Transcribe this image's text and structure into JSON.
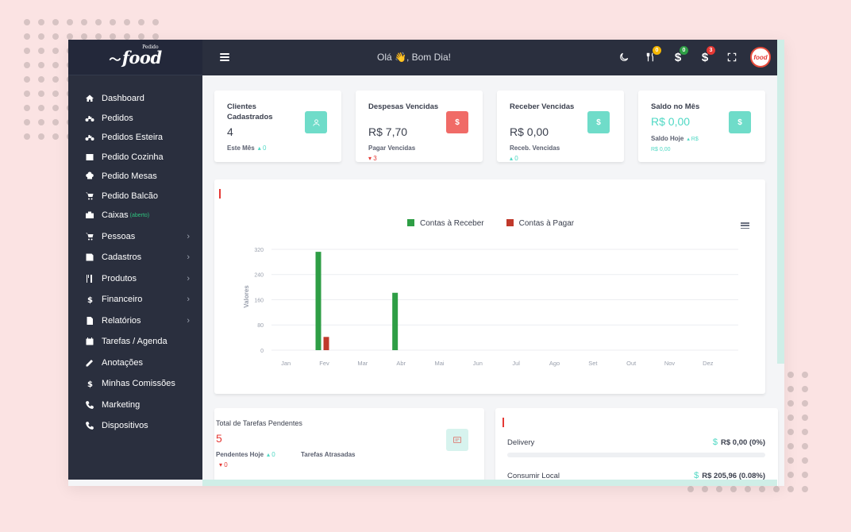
{
  "logo": {
    "text": "food",
    "superscript": "Pedido"
  },
  "header": {
    "greeting": "Olá 👋, Bom Dia!"
  },
  "topbar_badges": [
    {
      "icon": "moon-icon",
      "count": null
    },
    {
      "icon": "utensils-icon",
      "count": "0",
      "color": "#f5b700"
    },
    {
      "icon": "dollar-icon",
      "count": "0",
      "color": "#2e9e45"
    },
    {
      "icon": "dollar-icon",
      "count": "3",
      "color": "#e53935"
    },
    {
      "icon": "fullscreen-icon",
      "count": null
    }
  ],
  "avatar": {
    "text": "food"
  },
  "sidebar": {
    "items": [
      {
        "label": "Dashboard",
        "icon": "home-icon"
      },
      {
        "label": "Pedidos",
        "icon": "motorcycle-icon"
      },
      {
        "label": "Pedidos Esteira",
        "icon": "motorcycle-icon"
      },
      {
        "label": "Pedido Cozinha",
        "icon": "table-icon"
      },
      {
        "label": "Pedido Mesas",
        "icon": "chef-icon"
      },
      {
        "label": "Pedido Balcão",
        "icon": "cart-icon"
      },
      {
        "label": "Caixas",
        "sub": "(aberto)",
        "icon": "briefcase-icon"
      },
      {
        "label": "Pessoas",
        "icon": "cart-icon",
        "chevron": true
      },
      {
        "label": "Cadastros",
        "icon": "save-icon",
        "chevron": true
      },
      {
        "label": "Produtos",
        "icon": "utensils-icon",
        "chevron": true
      },
      {
        "label": "Financeiro",
        "icon": "dollar-icon",
        "chevron": true
      },
      {
        "label": "Relatórios",
        "icon": "file-icon",
        "chevron": true
      },
      {
        "label": "Tarefas / Agenda",
        "icon": "calendar-icon"
      },
      {
        "label": "Anotações",
        "icon": "edit-icon"
      },
      {
        "label": "Minhas Comissões",
        "icon": "dollar-icon"
      },
      {
        "label": "Marketing",
        "icon": "phone-icon"
      },
      {
        "label": "Dispositivos",
        "icon": "phone-icon"
      }
    ]
  },
  "stats": [
    {
      "title": "Clientes Cadastrados",
      "value": "4",
      "footer_label": "Este Mês",
      "footer_value": "0",
      "icon_text": "👤"
    },
    {
      "title": "Despesas Vencidas",
      "value": "R$ 7,70",
      "footer_label": "Pagar Vencidas",
      "footer_value": "3",
      "icon_text": "$"
    },
    {
      "title": "Receber Vencidas",
      "value": "R$ 0,00",
      "footer_label": "Receb. Vencidas",
      "footer_value": "0",
      "icon_text": "$"
    },
    {
      "title": "Saldo no Mês",
      "value": "R$ 0,00",
      "footer_label": "Saldo Hoje",
      "footer_value": "R$ 0,00",
      "icon_text": "$"
    }
  ],
  "chart_data": {
    "type": "bar",
    "title": "",
    "ylabel": "Valores",
    "xlabel": "",
    "categories": [
      "Jan",
      "Fev",
      "Mar",
      "Abr",
      "Mai",
      "Jun",
      "Jul",
      "Ago",
      "Set",
      "Out",
      "Nov",
      "Dez"
    ],
    "series": [
      {
        "name": "Contas à Receber",
        "color": "#2e9e45",
        "values": [
          0,
          312,
          0,
          182,
          0,
          0,
          0,
          0,
          0,
          0,
          0,
          0
        ]
      },
      {
        "name": "Contas à Pagar",
        "color": "#c0392b",
        "values": [
          0,
          42,
          0,
          0,
          0,
          0,
          0,
          0,
          0,
          0,
          0,
          0
        ]
      }
    ],
    "yticks": [
      0,
      80,
      160,
      240,
      320
    ],
    "ylim": [
      0,
      340
    ],
    "grid": true,
    "legend": "top-center"
  },
  "tasks": {
    "title": "Total de Tarefas Pendentes",
    "value": "5",
    "today_label": "Pendentes Hoje",
    "today_value": "0",
    "late_label": "Tarefas Atrasadas",
    "late_value": "0"
  },
  "channels": [
    {
      "label": "Delivery",
      "value": "R$ 0,00 (0%)",
      "currency": "$",
      "fraction": 0.0
    },
    {
      "label": "Consumir Local",
      "value": "R$ 205,96 (0.08%)",
      "currency": "$",
      "fraction": 0.0008
    }
  ]
}
